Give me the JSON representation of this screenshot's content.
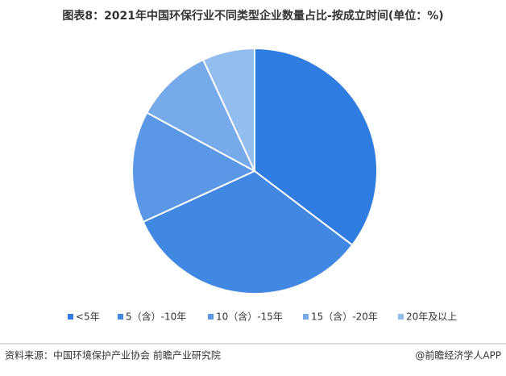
{
  "chart_data": {
    "type": "pie",
    "title": "图表8：2021年中国环保行业不同类型企业数量占比-按成立时间(单位：%)",
    "categories": [
      "<5年",
      "5（含）-10年",
      "10（含）-15年",
      "15（含）-20年",
      "20年及以上"
    ],
    "values": [
      35.3,
      32.9,
      14.7,
      10.2,
      6.9
    ],
    "colors": [
      "#2f7de1",
      "#4188e3",
      "#5a98e6",
      "#77aaea",
      "#93bdef"
    ],
    "legend": "bottom",
    "source": "资料来源：中国环境保护产业协会 前瞻产业研究院",
    "credit": "@前瞻经济学人APP"
  }
}
